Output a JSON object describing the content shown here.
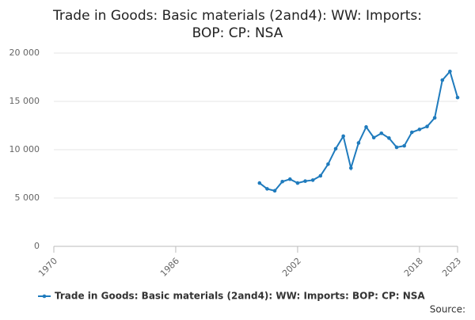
{
  "chart_data": {
    "type": "line",
    "title": [
      "Trade in Goods: Basic materials (2and4): WW: Imports:",
      "BOP: CP: NSA"
    ],
    "x": [
      1997,
      1998,
      1999,
      2000,
      2001,
      2002,
      2003,
      2004,
      2005,
      2006,
      2007,
      2008,
      2009,
      2010,
      2011,
      2012,
      2013,
      2014,
      2015,
      2016,
      2017,
      2018,
      2019,
      2020,
      2021,
      2022,
      2023
    ],
    "series": [
      {
        "name": "Trade in Goods: Basic materials (2and4): WW: Imports: BOP: CP: NSA",
        "color": "#1f7bbd",
        "values": [
          6550,
          5950,
          5750,
          6700,
          6950,
          6550,
          6750,
          6850,
          7300,
          8500,
          10100,
          11400,
          8100,
          10700,
          12350,
          11250,
          11700,
          11200,
          10250,
          10400,
          11800,
          12100,
          12400,
          13300,
          17200,
          18100,
          15400
        ]
      }
    ],
    "xlim": [
      1970,
      2023
    ],
    "xticks": [
      1970,
      1986,
      2002,
      2018,
      2023
    ],
    "ylim": [
      0,
      20000
    ],
    "yticks": [
      0,
      {
        "value": 5000,
        "label": "5 000"
      },
      {
        "value": 10000,
        "label": "10 000"
      },
      {
        "value": 15000,
        "label": "15 000"
      },
      {
        "value": 20000,
        "label": "20 000"
      }
    ],
    "grid": true,
    "legend": "bottom",
    "source": "Source:"
  }
}
